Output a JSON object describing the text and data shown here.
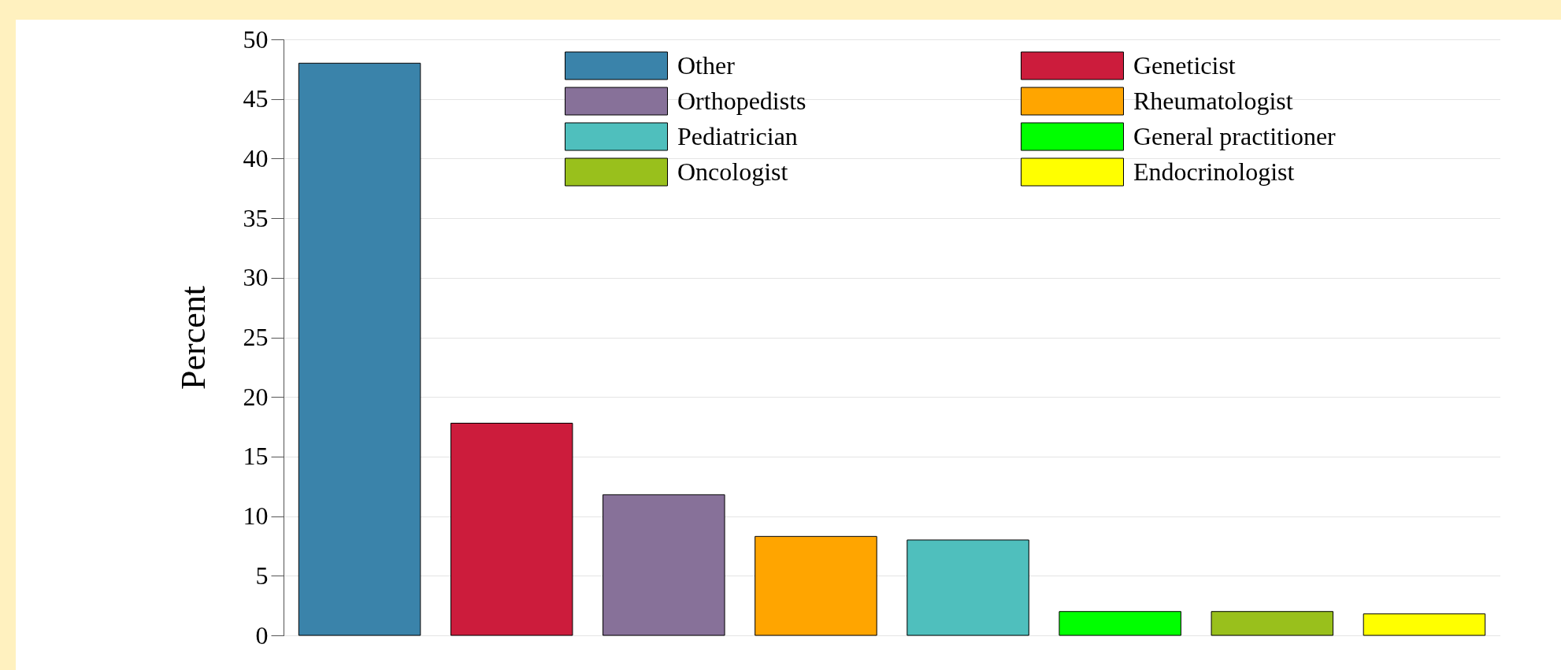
{
  "chart_data": {
    "type": "bar",
    "ylabel": "Percent",
    "categories": [
      null
    ],
    "series": [
      {
        "name": "Other",
        "color": "#3a83aa",
        "values": [
          48
        ]
      },
      {
        "name": "Geneticist",
        "color": "#cc1c3c",
        "values": [
          17.8
        ]
      },
      {
        "name": "Orthopedists",
        "color": "#877199",
        "values": [
          11.8
        ]
      },
      {
        "name": "Rheumatologist",
        "color": "#ffa500",
        "values": [
          8.3
        ]
      },
      {
        "name": "Pediatrician",
        "color": "#4fbfbd",
        "values": [
          8.0
        ]
      },
      {
        "name": "General practitioner",
        "color": "#00ff00",
        "values": [
          2.0
        ]
      },
      {
        "name": "Oncologist",
        "color": "#99c01c",
        "values": [
          2.0
        ]
      },
      {
        "name": "Endocrinologist",
        "color": "#ffff00",
        "values": [
          1.8
        ]
      }
    ],
    "ylim": [
      0,
      50
    ],
    "yticks": [
      0,
      5,
      10,
      15,
      20,
      25,
      30,
      35,
      40,
      45,
      50
    ],
    "grid": "y",
    "legend": "top right",
    "tick_labels": "y"
  }
}
